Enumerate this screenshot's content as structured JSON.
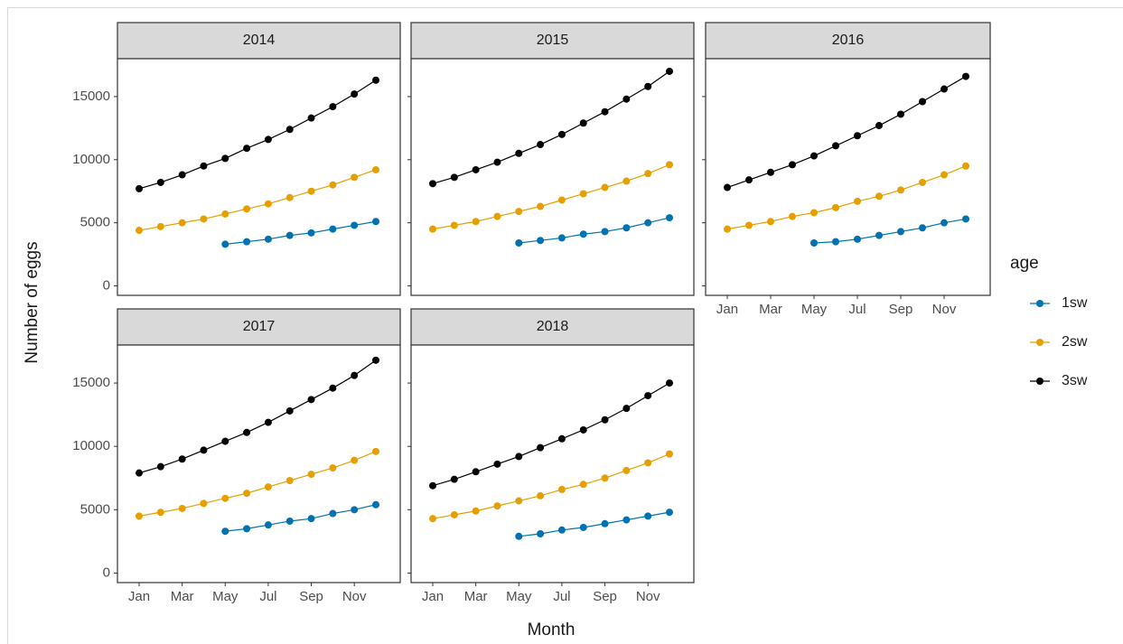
{
  "chart_data": [
    {
      "type": "line",
      "title": "2014",
      "series": [
        {
          "name": "1sw",
          "color": "#0072B2",
          "values": [
            null,
            null,
            null,
            null,
            3300,
            3500,
            3700,
            4000,
            4200,
            4500,
            4800,
            5100
          ]
        },
        {
          "name": "2sw",
          "color": "#E69F00",
          "values": [
            4400,
            4700,
            5000,
            5300,
            5700,
            6100,
            6500,
            7000,
            7500,
            8000,
            8600,
            9200
          ]
        },
        {
          "name": "3sw",
          "color": "#000000",
          "values": [
            7700,
            8200,
            8800,
            9500,
            10100,
            10900,
            11600,
            12400,
            13300,
            14200,
            15200,
            16300
          ]
        }
      ]
    },
    {
      "type": "line",
      "title": "2015",
      "series": [
        {
          "name": "1sw",
          "color": "#0072B2",
          "values": [
            null,
            null,
            null,
            null,
            3400,
            3600,
            3800,
            4100,
            4300,
            4600,
            5000,
            5400
          ]
        },
        {
          "name": "2sw",
          "color": "#E69F00",
          "values": [
            4500,
            4800,
            5100,
            5500,
            5900,
            6300,
            6800,
            7300,
            7800,
            8300,
            8900,
            9600
          ]
        },
        {
          "name": "3sw",
          "color": "#000000",
          "values": [
            8100,
            8600,
            9200,
            9800,
            10500,
            11200,
            12000,
            12900,
            13800,
            14800,
            15800,
            17000
          ]
        }
      ]
    },
    {
      "type": "line",
      "title": "2016",
      "series": [
        {
          "name": "1sw",
          "color": "#0072B2",
          "values": [
            null,
            null,
            null,
            null,
            3400,
            3500,
            3700,
            4000,
            4300,
            4600,
            5000,
            5300
          ]
        },
        {
          "name": "2sw",
          "color": "#E69F00",
          "values": [
            4500,
            4800,
            5100,
            5500,
            5800,
            6200,
            6700,
            7100,
            7600,
            8200,
            8800,
            9500
          ]
        },
        {
          "name": "3sw",
          "color": "#000000",
          "values": [
            7800,
            8400,
            9000,
            9600,
            10300,
            11100,
            11900,
            12700,
            13600,
            14600,
            15600,
            16600
          ]
        }
      ]
    },
    {
      "type": "line",
      "title": "2017",
      "series": [
        {
          "name": "1sw",
          "color": "#0072B2",
          "values": [
            null,
            null,
            null,
            null,
            3300,
            3500,
            3800,
            4100,
            4300,
            4700,
            5000,
            5400
          ]
        },
        {
          "name": "2sw",
          "color": "#E69F00",
          "values": [
            4500,
            4800,
            5100,
            5500,
            5900,
            6300,
            6800,
            7300,
            7800,
            8300,
            8900,
            9600
          ]
        },
        {
          "name": "3sw",
          "color": "#000000",
          "values": [
            7900,
            8400,
            9000,
            9700,
            10400,
            11100,
            11900,
            12800,
            13700,
            14600,
            15600,
            16800
          ]
        }
      ]
    },
    {
      "type": "line",
      "title": "2018",
      "series": [
        {
          "name": "1sw",
          "color": "#0072B2",
          "values": [
            null,
            null,
            null,
            null,
            2900,
            3100,
            3400,
            3600,
            3900,
            4200,
            4500,
            4800
          ]
        },
        {
          "name": "2sw",
          "color": "#E69F00",
          "values": [
            4300,
            4600,
            4900,
            5300,
            5700,
            6100,
            6600,
            7000,
            7500,
            8100,
            8700,
            9400
          ]
        },
        {
          "name": "3sw",
          "color": "#000000",
          "values": [
            6900,
            7400,
            8000,
            8600,
            9200,
            9900,
            10600,
            11300,
            12100,
            13000,
            14000,
            15000
          ]
        }
      ]
    }
  ],
  "shared": {
    "categories": [
      "Jan",
      null,
      "Mar",
      null,
      "May",
      null,
      "Jul",
      null,
      "Sep",
      null,
      "Nov",
      null
    ],
    "ylim": [
      -750,
      18000
    ],
    "yticks": [
      0,
      5000,
      10000,
      15000
    ],
    "x_label": "Month",
    "y_label": "Number of eggs",
    "legend_title": "age",
    "legend_position": "right",
    "grid": false
  }
}
